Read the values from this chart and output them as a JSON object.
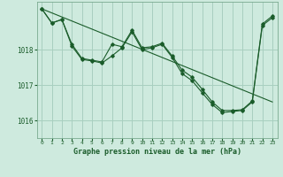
{
  "title": "Graphe pression niveau de la mer (hPa)",
  "bg_color": "#ceeade",
  "grid_color": "#a8cfc0",
  "line_color": "#1a5c2a",
  "axis_label_color": "#1a5c2a",
  "xlim": [
    -0.5,
    23.5
  ],
  "ylim": [
    1015.5,
    1019.35
  ],
  "yticks": [
    1016,
    1017,
    1018
  ],
  "xticks": [
    0,
    1,
    2,
    3,
    4,
    5,
    6,
    7,
    8,
    9,
    10,
    11,
    12,
    13,
    14,
    15,
    16,
    17,
    18,
    19,
    20,
    21,
    22,
    23
  ],
  "series1_x": [
    0,
    1,
    2,
    3,
    4,
    5,
    6,
    7,
    8,
    9,
    10,
    11,
    12,
    13,
    14,
    15,
    16,
    17,
    18,
    19,
    20,
    21,
    22,
    23
  ],
  "series1_y": [
    1019.15,
    1018.75,
    1018.85,
    1018.15,
    1017.75,
    1017.7,
    1017.65,
    1018.15,
    1018.08,
    1018.55,
    1018.05,
    1018.08,
    1018.18,
    1017.82,
    1017.42,
    1017.22,
    1016.88,
    1016.52,
    1016.28,
    1016.28,
    1016.3,
    1016.55,
    1018.72,
    1018.95
  ],
  "series2_x": [
    0,
    1,
    2,
    3,
    4,
    5,
    6,
    7,
    8,
    9,
    10,
    11,
    12,
    13,
    14,
    15,
    16,
    17,
    18,
    19,
    20,
    21,
    22,
    23
  ],
  "series2_y": [
    1019.15,
    1018.75,
    1018.85,
    1018.1,
    1017.72,
    1017.68,
    1017.62,
    1017.82,
    1018.05,
    1018.5,
    1018.0,
    1018.05,
    1018.15,
    1017.78,
    1017.32,
    1017.12,
    1016.78,
    1016.45,
    1016.22,
    1016.25,
    1016.28,
    1016.52,
    1018.68,
    1018.9
  ],
  "trend_x": [
    0,
    23
  ],
  "trend_y": [
    1019.15,
    1016.52
  ]
}
